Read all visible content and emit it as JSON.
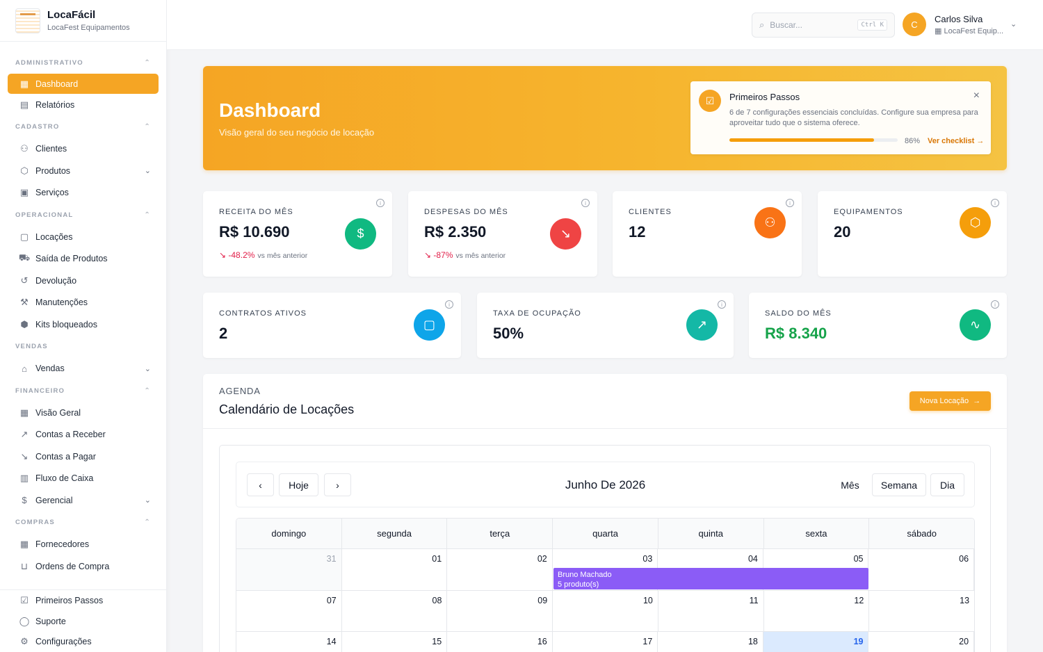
{
  "brand": {
    "name": "LocaFácil",
    "subtitle": "LocaFest Equipamentos"
  },
  "sidebar": {
    "sections": [
      {
        "title": "ADMINISTRATIVO",
        "items": [
          {
            "label": "Dashboard",
            "icon": "grid-icon",
            "active": true
          },
          {
            "label": "Relatórios",
            "icon": "file-icon"
          }
        ]
      },
      {
        "title": "CADASTRO",
        "items": [
          {
            "label": "Clientes",
            "icon": "users-icon"
          },
          {
            "label": "Produtos",
            "icon": "box-icon",
            "expand": true
          },
          {
            "label": "Serviços",
            "icon": "briefcase-icon"
          }
        ]
      },
      {
        "title": "OPERACIONAL",
        "items": [
          {
            "label": "Locações",
            "icon": "calendar-icon"
          },
          {
            "label": "Saída de Produtos",
            "icon": "truck-icon"
          },
          {
            "label": "Devolução",
            "icon": "return-icon"
          },
          {
            "label": "Manutenções",
            "icon": "wrench-icon"
          },
          {
            "label": "Kits bloqueados",
            "icon": "package-icon"
          }
        ]
      },
      {
        "title": "VENDAS",
        "items": [
          {
            "label": "Vendas",
            "icon": "store-icon",
            "expand": true
          }
        ]
      },
      {
        "title": "FINANCEIRO",
        "items": [
          {
            "label": "Visão Geral",
            "icon": "grid-icon"
          },
          {
            "label": "Contas a Receber",
            "icon": "trend-up-icon"
          },
          {
            "label": "Contas a Pagar",
            "icon": "trend-down-icon"
          },
          {
            "label": "Fluxo de Caixa",
            "icon": "bar-chart-icon"
          },
          {
            "label": "Gerencial",
            "icon": "dollar-icon",
            "expand": true
          }
        ]
      },
      {
        "title": "COMPRAS",
        "items": [
          {
            "label": "Fornecedores",
            "icon": "building-icon"
          },
          {
            "label": "Ordens de Compra",
            "icon": "cart-icon"
          }
        ]
      }
    ],
    "bottom": [
      {
        "label": "Primeiros Passos",
        "icon": "checkbox-icon"
      },
      {
        "label": "Suporte",
        "icon": "chat-icon"
      },
      {
        "label": "Configurações",
        "icon": "gear-icon"
      }
    ]
  },
  "topbar": {
    "search_placeholder": "Buscar...",
    "shortcut": "Ctrl K",
    "user_initial": "C",
    "user_name": "Carlos Silva",
    "user_company": "LocaFest Equip..."
  },
  "hero": {
    "title": "Dashboard",
    "subtitle": "Visão geral do seu negócio de locação"
  },
  "onboarding": {
    "title": "Primeiros Passos",
    "description": "6 de 7 configurações essenciais concluídas. Configure sua empresa para aproveitar tudo que o sistema oferece.",
    "progress_pct": 86,
    "progress_label": "86%",
    "link": "Ver checklist"
  },
  "stats_row1": [
    {
      "label": "RECEITA DO MÊS",
      "value": "R$ 10.690",
      "trend": "-48.2%",
      "trend_note": "vs mês anterior",
      "icon": "dollar-icon",
      "color": "#10b981"
    },
    {
      "label": "DESPESAS DO MÊS",
      "value": "R$ 2.350",
      "trend": "-87%",
      "trend_note": "vs mês anterior",
      "icon": "trend-down-icon",
      "color": "#ef4444"
    },
    {
      "label": "CLIENTES",
      "value": "12",
      "icon": "users-icon",
      "color": "#f97316"
    },
    {
      "label": "EQUIPAMENTOS",
      "value": "20",
      "icon": "box-icon",
      "color": "#f59e0b"
    }
  ],
  "stats_row2": [
    {
      "label": "CONTRATOS ATIVOS",
      "value": "2",
      "icon": "calendar-icon",
      "color": "#0ea5e9"
    },
    {
      "label": "TAXA DE OCUPAÇÃO",
      "value": "50%",
      "icon": "trend-up-icon",
      "color": "#14b8a6"
    },
    {
      "label": "SALDO DO MÊS",
      "value": "R$ 8.340",
      "icon": "activity-icon",
      "color": "#10b981",
      "value_color": "#16a34a"
    }
  ],
  "agenda": {
    "kicker": "AGENDA",
    "title": "Calendário de Locações",
    "new_button": "Nova Locação"
  },
  "calendar": {
    "today_label": "Hoje",
    "month_label": "Junho De 2026",
    "views": [
      "Mês",
      "Semana",
      "Dia"
    ],
    "weekdays": [
      "domingo",
      "segunda",
      "terça",
      "quarta",
      "quinta",
      "sexta",
      "sábado"
    ],
    "weeks": [
      [
        "31",
        "01",
        "02",
        "03",
        "04",
        "05",
        "06"
      ],
      [
        "07",
        "08",
        "09",
        "10",
        "11",
        "12",
        "13"
      ],
      [
        "14",
        "15",
        "16",
        "17",
        "18",
        "19",
        "20"
      ]
    ],
    "event": {
      "name": "Bruno Machado",
      "detail": "5 produto(s)"
    }
  }
}
